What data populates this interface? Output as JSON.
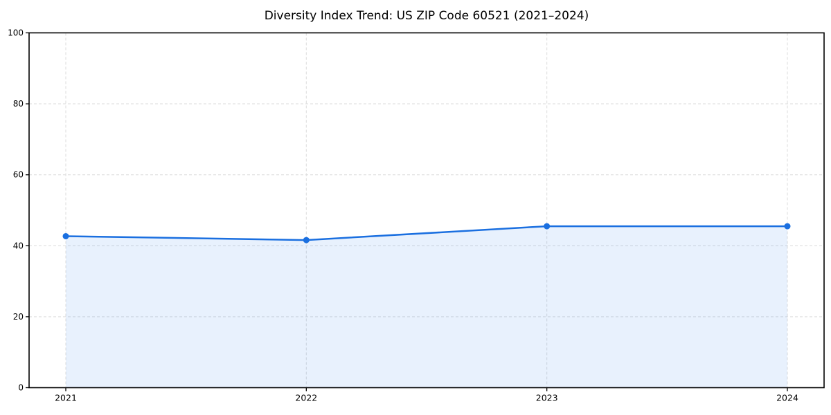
{
  "page": {
    "background": "#ffffff"
  },
  "chart_data": {
    "type": "area",
    "title": "Diversity Index Trend: US ZIP Code 60521 (2021–2024)",
    "x": [
      "2021",
      "2022",
      "2023",
      "2024"
    ],
    "series": [
      {
        "name": "Diversity Index",
        "values": [
          42.7,
          41.6,
          45.5,
          45.5
        ]
      }
    ],
    "xlabel": "",
    "ylabel": "",
    "ylim": [
      0,
      100
    ],
    "yticks": [
      0,
      20,
      40,
      60,
      80,
      100
    ],
    "grid": true,
    "grid_style": "dashed",
    "legend_position": "none",
    "marker": "circle",
    "colors": {
      "line": "#1a6fe0",
      "marker": "#1a6fe0",
      "fill": "#1a73e8",
      "fill_opacity": 0.1,
      "grid": "#dedede",
      "axis": "#000000",
      "tick_text": "#000000",
      "title_text": "#000000",
      "background": "#ffffff"
    }
  }
}
